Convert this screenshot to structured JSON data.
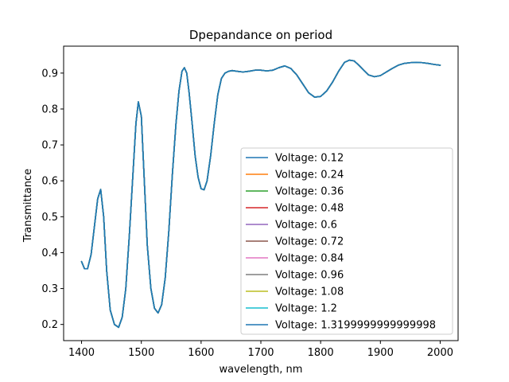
{
  "chart_data": {
    "type": "line",
    "title": "Dpepandance on period",
    "xlabel": "wavelength, nm",
    "ylabel": "Transmittance",
    "xlim": [
      1370,
      2030
    ],
    "ylim": [
      0.155,
      0.975
    ],
    "xticks": [
      1400,
      1500,
      1600,
      1700,
      1800,
      1900,
      2000
    ],
    "yticks": [
      0.2,
      0.3,
      0.4,
      0.5,
      0.6,
      0.7,
      0.8,
      0.9
    ],
    "xtick_labels": [
      "1400",
      "1500",
      "1600",
      "1700",
      "1800",
      "1900",
      "2000"
    ],
    "ytick_labels": [
      "0.2",
      "0.3",
      "0.4",
      "0.5",
      "0.6",
      "0.7",
      "0.8",
      "0.9"
    ],
    "grid": false,
    "legend_position": "lower-right",
    "x": [
      1400,
      1405,
      1410,
      1416,
      1422,
      1427,
      1432,
      1437,
      1442,
      1448,
      1455,
      1462,
      1468,
      1474,
      1480,
      1486,
      1491,
      1495,
      1500,
      1505,
      1510,
      1516,
      1522,
      1528,
      1534,
      1540,
      1546,
      1552,
      1558,
      1563,
      1568,
      1572,
      1576,
      1580,
      1585,
      1590,
      1595,
      1600,
      1605,
      1610,
      1616,
      1622,
      1628,
      1634,
      1640,
      1646,
      1652,
      1660,
      1670,
      1680,
      1690,
      1700,
      1710,
      1720,
      1730,
      1740,
      1750,
      1760,
      1770,
      1780,
      1790,
      1800,
      1810,
      1820,
      1830,
      1840,
      1848,
      1856,
      1864,
      1872,
      1880,
      1890,
      1900,
      1910,
      1920,
      1930,
      1940,
      1950,
      1960,
      1970,
      1980,
      1990,
      2000
    ],
    "series": [
      {
        "name": "Voltage: 0.12",
        "color": "#1f77b4",
        "values": [
          0.375,
          0.355,
          0.355,
          0.395,
          0.48,
          0.55,
          0.576,
          0.5,
          0.35,
          0.24,
          0.2,
          0.192,
          0.22,
          0.3,
          0.45,
          0.62,
          0.76,
          0.82,
          0.78,
          0.6,
          0.42,
          0.3,
          0.245,
          0.232,
          0.255,
          0.33,
          0.46,
          0.62,
          0.76,
          0.85,
          0.905,
          0.915,
          0.9,
          0.845,
          0.76,
          0.67,
          0.61,
          0.578,
          0.575,
          0.6,
          0.67,
          0.76,
          0.84,
          0.885,
          0.9,
          0.905,
          0.907,
          0.905,
          0.903,
          0.905,
          0.908,
          0.908,
          0.906,
          0.908,
          0.915,
          0.92,
          0.913,
          0.895,
          0.87,
          0.845,
          0.833,
          0.835,
          0.85,
          0.875,
          0.905,
          0.93,
          0.936,
          0.934,
          0.922,
          0.908,
          0.895,
          0.89,
          0.893,
          0.903,
          0.913,
          0.922,
          0.927,
          0.929,
          0.93,
          0.929,
          0.927,
          0.924,
          0.922
        ]
      },
      {
        "name": "Voltage: 0.24",
        "color": "#ff7f0e"
      },
      {
        "name": "Voltage: 0.36",
        "color": "#2ca02c"
      },
      {
        "name": "Voltage: 0.48",
        "color": "#d62728"
      },
      {
        "name": "Voltage: 0.6",
        "color": "#9467bd"
      },
      {
        "name": "Voltage: 0.72",
        "color": "#8c564b"
      },
      {
        "name": "Voltage: 0.84",
        "color": "#e377c2"
      },
      {
        "name": "Voltage: 0.96",
        "color": "#7f7f7f"
      },
      {
        "name": "Voltage: 1.08",
        "color": "#bcbd22"
      },
      {
        "name": "Voltage: 1.2",
        "color": "#17becf"
      },
      {
        "name": "Voltage: 1.3199999999999998",
        "color": "#1f77b4"
      }
    ]
  }
}
